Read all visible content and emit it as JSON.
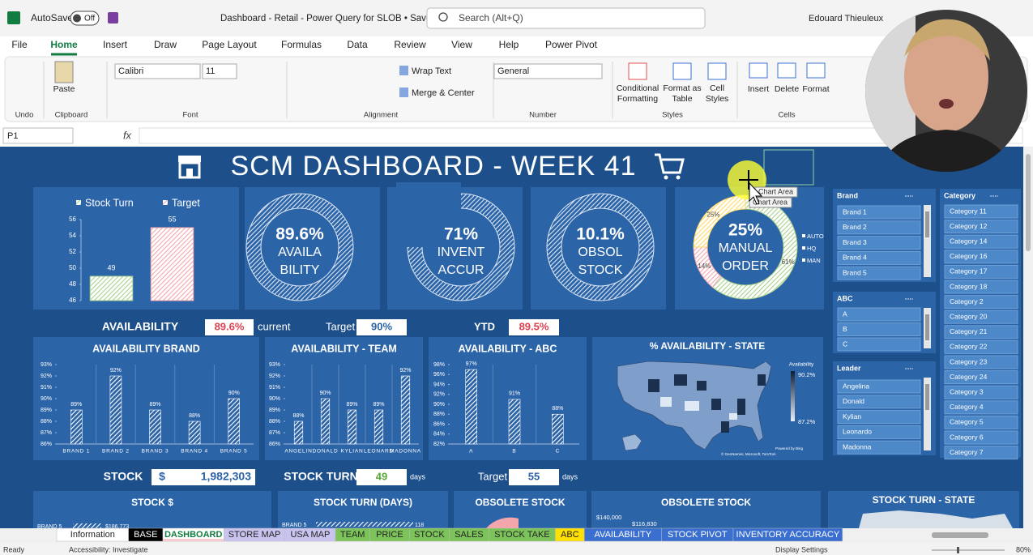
{
  "titlebar": {
    "autosave": "AutoSave",
    "toggle": "Off",
    "filename": "Dashboard - Retail - Power Query for SLOB • Saved",
    "search": "Search (Alt+Q)",
    "user": "Edouard Thieuleux"
  },
  "menu": [
    "File",
    "Home",
    "Insert",
    "Draw",
    "Page Layout",
    "Formulas",
    "Data",
    "Review",
    "View",
    "Help",
    "Power Pivot"
  ],
  "ribbon": {
    "paste": "Paste",
    "font": "Calibri",
    "size": "11",
    "wrap": "Wrap Text",
    "merge": "Merge & Center",
    "number_format": "General",
    "conditional": [
      "Conditional",
      "Formatting"
    ],
    "format_table": [
      "Format as",
      "Table"
    ],
    "cell_styles": [
      "Cell",
      "Styles"
    ],
    "insert": "Insert",
    "delete": "Delete",
    "format": "Format",
    "groups": [
      "Undo",
      "Clipboard",
      "Font",
      "Alignment",
      "Number",
      "Styles",
      "Cells"
    ]
  },
  "formula_bar": {
    "name_box": "P1",
    "fx": "fx"
  },
  "dashboard": {
    "title": "SCM DASHBOARD - WEEK 41",
    "stock_turn_chart": {
      "type": "bar",
      "categories": [
        "Stock Turn",
        "Target"
      ],
      "values": [
        49,
        55
      ],
      "colors": [
        "#a9d18e",
        "#f4a6ad"
      ],
      "ylim": [
        46,
        56
      ],
      "yticks": [
        46,
        48,
        50,
        52,
        54,
        56
      ]
    },
    "kpis": [
      {
        "value": "89.6%",
        "label": [
          "AVAILA",
          "BILITY"
        ]
      },
      {
        "value": "71%",
        "label": [
          "INVENT",
          "ACCUR"
        ]
      },
      {
        "value": "10.1%",
        "label": [
          "OBSOL",
          "STOCK"
        ]
      }
    ],
    "manual_order": {
      "type": "pie",
      "value": "25%",
      "label": [
        "MANUAL",
        "ORDER"
      ],
      "categories": [
        "AUTO",
        "HQ",
        "MAN"
      ],
      "values": [
        61,
        14,
        25
      ],
      "value_labels": [
        "61%",
        "14%",
        "25%"
      ],
      "colors": [
        "#a9d18e",
        "#f4a6ad",
        "#ffd966"
      ]
    },
    "tooltip": [
      "Chart Area",
      "Chart Area"
    ],
    "availability_row": {
      "label": "AVAILABILITY",
      "current": "89.6%",
      "current_label": "current",
      "target_label": "Target",
      "target": "90%",
      "ytd_label": "YTD",
      "ytd": "89.5%"
    },
    "availability_brand": {
      "type": "bar",
      "title": "AVAILABILITY BRAND",
      "categories": [
        "BRAND 1",
        "BRAND 2",
        "BRAND 3",
        "BRAND 4",
        "BRAND 5"
      ],
      "values": [
        89,
        92,
        89,
        88,
        90
      ],
      "value_labels": [
        "89%",
        "92%",
        "89%",
        "88%",
        "90%"
      ],
      "ylim": [
        86,
        93
      ],
      "yticks": [
        {
          "value": 86,
          "label": "86%"
        },
        {
          "value": 87,
          "label": "87%"
        },
        {
          "value": 88,
          "label": "88%"
        },
        {
          "value": 89,
          "label": "89%"
        },
        {
          "value": 90,
          "label": "90%"
        },
        {
          "value": 91,
          "label": "91%"
        },
        {
          "value": 92,
          "label": "92%"
        },
        {
          "value": 93,
          "label": "93%"
        }
      ]
    },
    "availability_team": {
      "type": "bar",
      "title": "AVAILABILITY - TEAM",
      "categories": [
        "ANGELIN",
        "DONALD",
        "KYLIAN",
        "LEONARD",
        "MADONNA"
      ],
      "values": [
        88,
        90,
        89,
        89,
        92
      ],
      "value_labels": [
        "88%",
        "90%",
        "89%",
        "89%",
        "92%"
      ],
      "ylim": [
        86,
        93
      ],
      "yticks": [
        {
          "value": 86,
          "label": "86%"
        },
        {
          "value": 87,
          "label": "87%"
        },
        {
          "value": 88,
          "label": "88%"
        },
        {
          "value": 89,
          "label": "89%"
        },
        {
          "value": 90,
          "label": "90%"
        },
        {
          "value": 91,
          "label": "91%"
        },
        {
          "value": 92,
          "label": "92%"
        },
        {
          "value": 93,
          "label": "93%"
        }
      ]
    },
    "availability_abc": {
      "type": "bar",
      "title": "AVAILABILITY - ABC",
      "categories": [
        "A",
        "B",
        "C"
      ],
      "values": [
        97,
        91,
        88
      ],
      "value_labels": [
        "97%",
        "91%",
        "88%"
      ],
      "ylim": [
        82,
        98
      ],
      "yticks": [
        {
          "value": 82,
          "label": "82%"
        },
        {
          "value": 84,
          "label": "84%"
        },
        {
          "value": 86,
          "label": "86%"
        },
        {
          "value": 88,
          "label": "88%"
        },
        {
          "value": 90,
          "label": "90%"
        },
        {
          "value": 92,
          "label": "92%"
        },
        {
          "value": 94,
          "label": "94%"
        },
        {
          "value": 96,
          "label": "96%"
        },
        {
          "value": 98,
          "label": "98%"
        }
      ]
    },
    "state_map": {
      "title": "% AVAILABILITY - STATE",
      "legend_title": "Availability",
      "max": "90.2%",
      "min": "87.2%",
      "powered": "Powered by Bing",
      "credits": "© GeoNames, Microsoft, TomTom"
    },
    "stock_row": {
      "label": "STOCK",
      "currency": "$",
      "stock": "1,982,303",
      "turn_label": "STOCK TURN",
      "turn": "49",
      "days": "days",
      "target_label": "Target",
      "target": "55",
      "target_days": "days"
    },
    "bottom_panels": [
      "STOCK $",
      "STOCK TURN (DAYS)",
      "OBSOLETE STOCK",
      "OBSOLETE STOCK",
      "STOCK TURN - STATE"
    ],
    "bottom_texts": [
      "BRAND 5",
      "$186,773",
      "BRAND 5",
      "118",
      "$140,000",
      "$116,830"
    ],
    "slicers": [
      {
        "title": "Brand",
        "items": [
          "Brand 1",
          "Brand 2",
          "Brand 3",
          "Brand 4",
          "Brand 5"
        ]
      },
      {
        "title": "ABC",
        "items": [
          "A",
          "B",
          "C"
        ]
      },
      {
        "title": "Leader",
        "items": [
          "Angelina",
          "Donald",
          "Kylian",
          "Leonardo",
          "Madonna"
        ]
      },
      {
        "title": "Category",
        "items": [
          "Category 11",
          "Category 12",
          "Category 14",
          "Category 16",
          "Category 17",
          "Category 18",
          "Category 2",
          "Category 20",
          "Category 21",
          "Category 22",
          "Category 23",
          "Category 24",
          "Category 3",
          "Category 4",
          "Category 5",
          "Category 6",
          "Category 7"
        ]
      }
    ]
  },
  "sheet_tabs": [
    {
      "name": "Information",
      "color": "#ffffff"
    },
    {
      "name": "BASE",
      "color": "#000000"
    },
    {
      "name": "DASHBOARD",
      "color": "#f8cbd0"
    },
    {
      "name": "STORE MAP",
      "color": "#c9c3ef"
    },
    {
      "name": "USA MAP",
      "color": "#c9c3ef"
    },
    {
      "name": "TEAM",
      "color": "#7cc45a"
    },
    {
      "name": "PRICE",
      "color": "#7cc45a"
    },
    {
      "name": "STOCK",
      "color": "#7cc45a"
    },
    {
      "name": "SALES",
      "color": "#7cc45a"
    },
    {
      "name": "STOCK TAKE",
      "color": "#7cc45a"
    },
    {
      "name": "ABC",
      "color": "#ffe000"
    },
    {
      "name": "AVAILABILITY",
      "color": "#3a6fd0"
    },
    {
      "name": "STOCK PIVOT",
      "color": "#3a6fd0"
    },
    {
      "name": "INVENTORY ACCURACY",
      "color": "#3a6fd0"
    }
  ],
  "status": {
    "ready": "Ready",
    "accessibility": "Accessibility: Investigate",
    "display": "Display Settings",
    "zoom": "80%"
  }
}
